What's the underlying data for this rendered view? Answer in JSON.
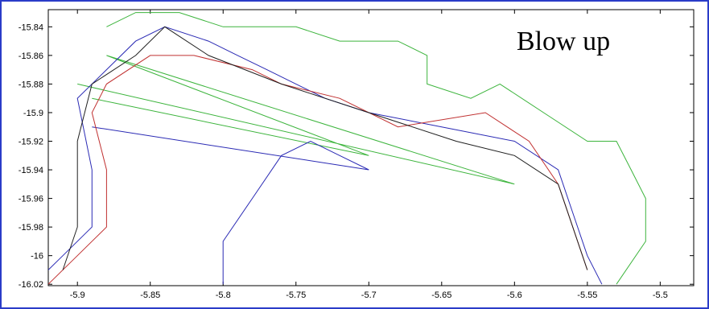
{
  "chart_data": {
    "type": "line",
    "annotation": "Blow up",
    "xlim": [
      -5.92,
      -5.477
    ],
    "ylim": [
      -16.021,
      -15.828
    ],
    "xticks": [
      -5.9,
      -5.85,
      -5.8,
      -5.75,
      -5.7,
      -5.65,
      -5.6,
      -5.55,
      -5.5
    ],
    "yticks": [
      -15.84,
      -15.86,
      -15.88,
      -15.9,
      -15.92,
      -15.94,
      -15.96,
      -15.98,
      -16,
      -16.02
    ],
    "series": [
      {
        "color": "#3cb43c",
        "x": [
          -5.88,
          -5.86,
          -5.83,
          -5.8,
          -5.75,
          -5.72,
          -5.68,
          -5.66,
          -5.66,
          -5.63,
          -5.61,
          -5.58,
          -5.55,
          -5.53,
          -5.52,
          -5.51,
          -5.51,
          -5.53
        ],
        "values": [
          -15.84,
          -15.83,
          -15.83,
          -15.84,
          -15.84,
          -15.85,
          -15.85,
          -15.86,
          -15.88,
          -15.89,
          -15.88,
          -15.9,
          -15.92,
          -15.92,
          -15.94,
          -15.96,
          -15.99,
          -16.02
        ]
      },
      {
        "color": "#3cb43c",
        "x": [
          -5.9,
          -5.6,
          -5.88,
          -5.7,
          -5.89
        ],
        "values": [
          -15.88,
          -15.95,
          -15.86,
          -15.93,
          -15.89
        ]
      },
      {
        "color": "#2a2ab4",
        "x": [
          -5.93,
          -5.91,
          -5.89,
          -5.89,
          -5.9,
          -5.88,
          -5.86,
          -5.84,
          -5.81,
          -5.79,
          -5.77,
          -5.75,
          -5.73,
          -5.7,
          -5.65,
          -5.6,
          -5.57,
          -5.56,
          -5.55,
          -5.54
        ],
        "values": [
          -16.02,
          -16.0,
          -15.98,
          -15.94,
          -15.89,
          -15.87,
          -15.85,
          -15.84,
          -15.85,
          -15.86,
          -15.87,
          -15.88,
          -15.89,
          -15.9,
          -15.91,
          -15.92,
          -15.94,
          -15.97,
          -16.0,
          -16.02
        ]
      },
      {
        "color": "#2a2ab4",
        "x": [
          -5.89,
          -5.7,
          -5.72,
          -5.74,
          -5.76,
          -5.78,
          -5.8,
          -5.8
        ],
        "values": [
          -15.91,
          -15.94,
          -15.93,
          -15.92,
          -15.93,
          -15.96,
          -15.99,
          -16.02
        ]
      },
      {
        "color": "#c03030",
        "x": [
          -5.92,
          -5.9,
          -5.88,
          -5.88,
          -5.89,
          -5.88,
          -5.85,
          -5.82,
          -5.78,
          -5.76,
          -5.72,
          -5.68,
          -5.62,
          -5.59,
          -5.57,
          -5.56,
          -5.55
        ],
        "values": [
          -16.02,
          -16.0,
          -15.98,
          -15.94,
          -15.9,
          -15.88,
          -15.86,
          -15.86,
          -15.87,
          -15.88,
          -15.89,
          -15.91,
          -15.9,
          -15.92,
          -15.95,
          -15.98,
          -16.01
        ]
      },
      {
        "color": "#202020",
        "x": [
          -5.91,
          -5.9,
          -5.9,
          -5.9,
          -5.89,
          -5.86,
          -5.84,
          -5.81,
          -5.76,
          -5.7,
          -5.64,
          -5.6,
          -5.57,
          -5.56,
          -5.55
        ],
        "values": [
          -16.01,
          -15.98,
          -15.95,
          -15.92,
          -15.88,
          -15.86,
          -15.84,
          -15.86,
          -15.88,
          -15.9,
          -15.92,
          -15.93,
          -15.95,
          -15.98,
          -16.01
        ]
      }
    ]
  }
}
